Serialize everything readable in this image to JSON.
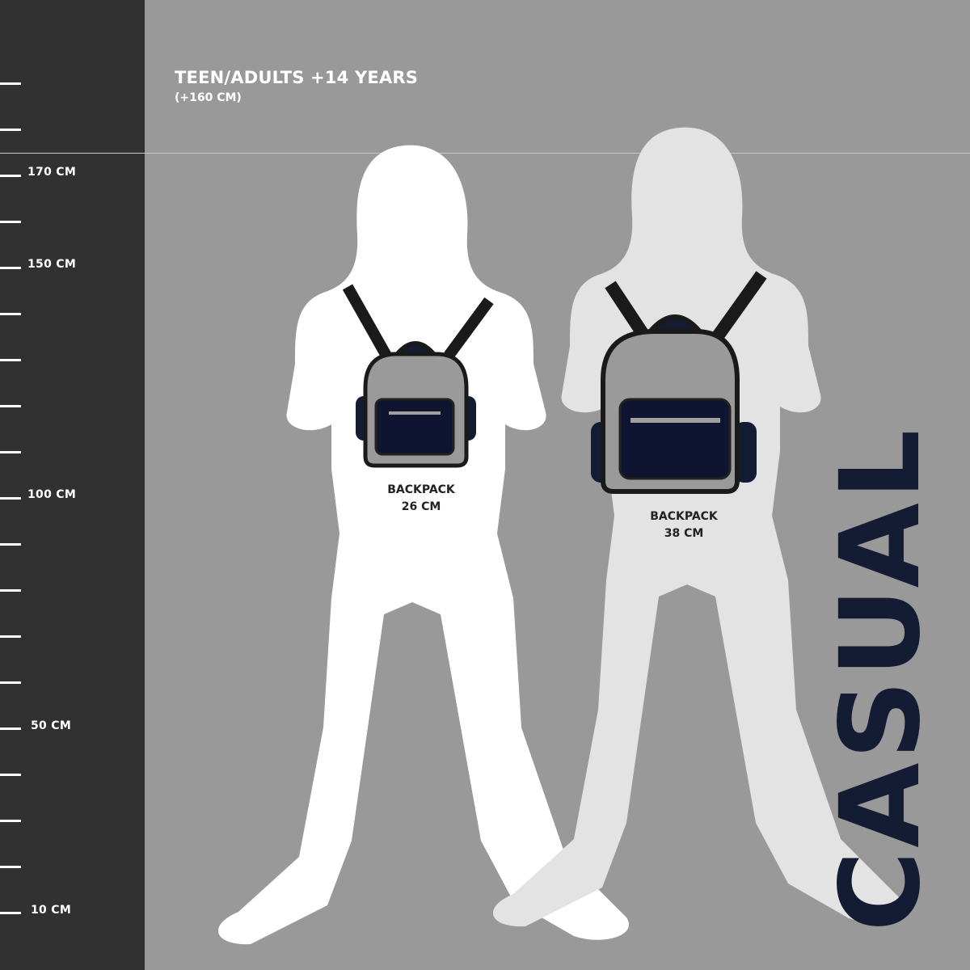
{
  "header": {
    "title": "TEEN/ADULTS +14 YEARS",
    "subtitle": "(+160 CM)"
  },
  "ruler": {
    "labels": {
      "l170": "170 CM",
      "l150": "150 CM",
      "l100": "100 CM",
      "l50": "50 CM",
      "l10": "10 CM"
    }
  },
  "figures": [
    {
      "label": "BACKPACK",
      "size": "26 CM"
    },
    {
      "label": "BACKPACK",
      "size": "38 CM"
    }
  ],
  "brand": {
    "collection": "CASUAL"
  },
  "colors": {
    "ruler_bg": "#313131",
    "bg": "#999999",
    "navy": "#141c33",
    "figure1": "#ffffff",
    "figure2": "#e3e3e3"
  }
}
